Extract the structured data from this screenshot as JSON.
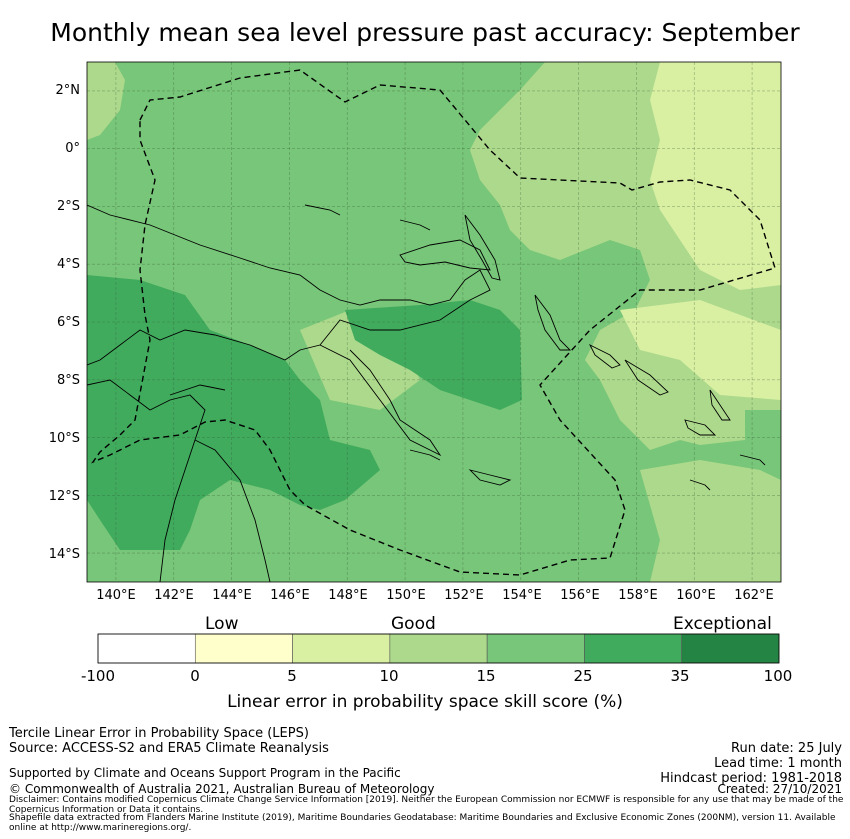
{
  "title": "Monthly mean sea level pressure past accuracy: September",
  "map": {
    "lat_ticks": [
      "2°N",
      "0°",
      "2°S",
      "4°S",
      "6°S",
      "8°S",
      "10°S",
      "12°S",
      "14°S"
    ],
    "lon_ticks": [
      "140°E",
      "142°E",
      "144°E",
      "146°E",
      "148°E",
      "150°E",
      "152°E",
      "154°E",
      "156°E",
      "158°E",
      "160°E",
      "162°E"
    ],
    "lat_range": [
      -15,
      3
    ],
    "lon_range": [
      139,
      163
    ],
    "grid": true,
    "boundary_style": "dashed",
    "colors": {
      "c5_15": "#add98c",
      "c15_25": "#78c679",
      "c25_35": "#41ab5d",
      "c0_5": "#d9f0a3"
    }
  },
  "colorbar": {
    "categories": [
      "Low",
      "Good",
      "Exceptional"
    ],
    "ticks": [
      "-100",
      "0",
      "5",
      "10",
      "15",
      "25",
      "35",
      "100"
    ],
    "colors": [
      "#ffffff",
      "#ffffcc",
      "#d9f0a3",
      "#add98c",
      "#78c679",
      "#41ab5d",
      "#238443"
    ],
    "label": "Linear error in probability space skill score (%)"
  },
  "footer": {
    "method": "Tercile Linear Error in Probability Space (LEPS)",
    "source": "Source: ACCESS-S2 and ERA5 Climate Reanalysis",
    "run_date": "Run date: 25 July",
    "lead_time": "Lead time: 1 month",
    "hindcast": "Hindcast period: 1981-2018",
    "support": "Supported by Climate and Oceans Support Program in the Pacific",
    "copyright": "© Commonwealth of Australia 2021, Australian Bureau of Meteorology",
    "created": "Created: 27/10/2021",
    "disclaimer": "Disclaimer: Contains modified Copernicus Climate Change Service Information [2019]. Neither the European Commission nor ECMWF is responsible for any use that may be made of the Copernicus Information or Data it contains.",
    "shapefile": "Shapefile data extracted from Flanders Marine Institute (2019), Maritime Boundaries Geodatabase: Maritime Boundaries and Exclusive Economic Zones (200NM), version 11. Available online at http://www.marineregions.org/."
  }
}
